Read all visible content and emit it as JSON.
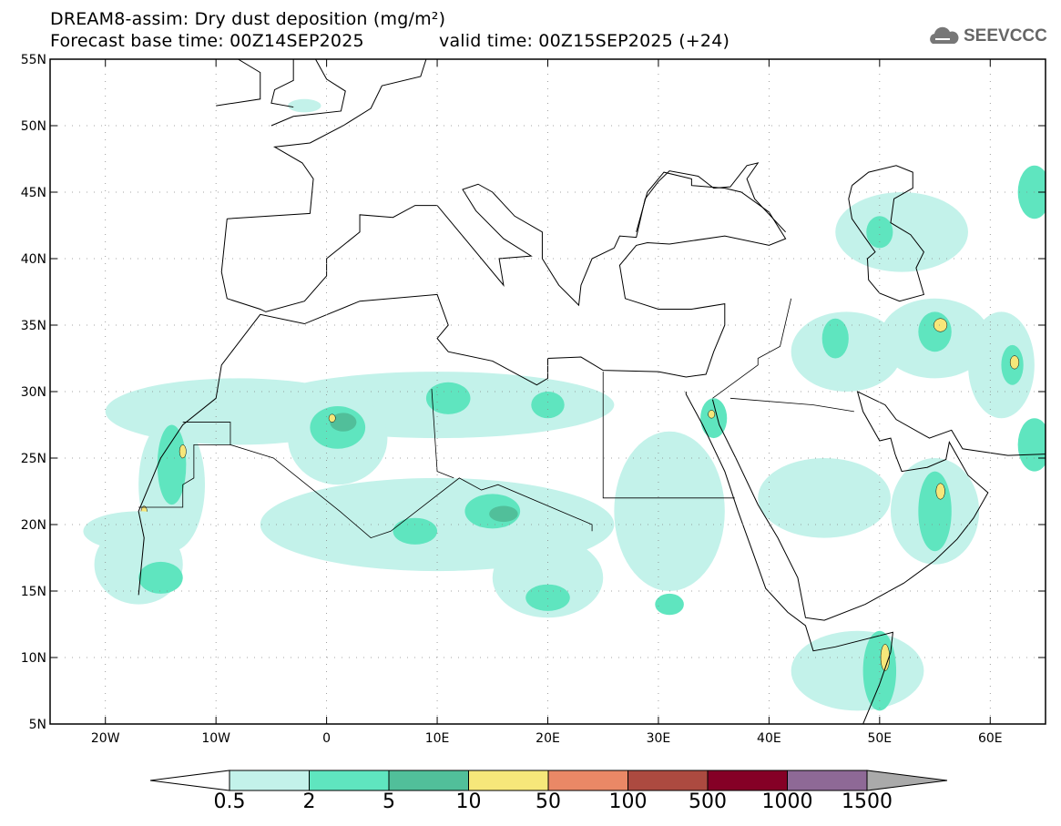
{
  "title": "DREAM8-assim: Dry dust deposition (mg/m²)",
  "subtitle_base": "Forecast base time: 00Z14SEP2025",
  "subtitle_valid": "valid time: 00Z15SEP2025 (+24)",
  "logo": "SEEVCCC",
  "map": {
    "lon_range": [
      -25,
      65
    ],
    "lat_range": [
      5,
      55
    ],
    "lat_ticks": [
      "5N",
      "10N",
      "15N",
      "20N",
      "25N",
      "30N",
      "35N",
      "40N",
      "45N",
      "50N",
      "55N"
    ],
    "lon_ticks": [
      "20W",
      "10W",
      "0",
      "10E",
      "20E",
      "30E",
      "40E",
      "50E",
      "60E"
    ]
  },
  "colorbar": {
    "labels": [
      "0.5",
      "2",
      "5",
      "10",
      "50",
      "100",
      "500",
      "1000",
      "1500"
    ],
    "colors": [
      "#c3f2ea",
      "#5fe5bf",
      "#51bf9a",
      "#f6e77a",
      "#ea8866",
      "#ac4a40",
      "#850026",
      "#8e6996"
    ],
    "under_color": "#ffffff",
    "over_color": "#aaaaaa"
  },
  "dust_regions": [
    {
      "lon": -8,
      "lat": 28.5,
      "rlon": 12,
      "rlat": 2.5,
      "level": 0
    },
    {
      "lon": 10,
      "lat": 29,
      "rlon": 16,
      "rlat": 2.5,
      "level": 0
    },
    {
      "lon": -14,
      "lat": 23,
      "rlon": 3,
      "rlat": 5,
      "level": 0
    },
    {
      "lon": -14,
      "lat": 24.5,
      "rlon": 1.3,
      "rlat": 3,
      "level": 1
    },
    {
      "lon": -13,
      "lat": 25.5,
      "rlon": 0.3,
      "rlat": 0.5,
      "level": 3
    },
    {
      "lon": -16.5,
      "lat": 20.8,
      "rlon": 0.3,
      "rlat": 0.6,
      "level": 3
    },
    {
      "lon": -17,
      "lat": 17,
      "rlon": 4,
      "rlat": 3,
      "level": 0
    },
    {
      "lon": -15,
      "lat": 16,
      "rlon": 2,
      "rlat": 1.2,
      "level": 1
    },
    {
      "lon": -17,
      "lat": 19.5,
      "rlon": 5,
      "rlat": 1.5,
      "level": 0
    },
    {
      "lon": 1,
      "lat": 26.5,
      "rlon": 4.5,
      "rlat": 3.5,
      "level": 0
    },
    {
      "lon": 1,
      "lat": 27.3,
      "rlon": 2.5,
      "rlat": 1.6,
      "level": 1
    },
    {
      "lon": 1.5,
      "lat": 27.7,
      "rlon": 1.2,
      "rlat": 0.7,
      "level": 2
    },
    {
      "lon": 0.5,
      "lat": 28,
      "rlon": 0.3,
      "rlat": 0.3,
      "level": 3
    },
    {
      "lon": 11,
      "lat": 29.5,
      "rlon": 2,
      "rlat": 1.2,
      "level": 1
    },
    {
      "lon": 20,
      "lat": 29,
      "rlon": 1.5,
      "rlat": 1,
      "level": 1
    },
    {
      "lon": 10,
      "lat": 20,
      "rlon": 16,
      "rlat": 3.5,
      "level": 0
    },
    {
      "lon": 15,
      "lat": 21,
      "rlon": 2.5,
      "rlat": 1.3,
      "level": 1
    },
    {
      "lon": 16,
      "lat": 20.8,
      "rlon": 1.3,
      "rlat": 0.6,
      "level": 2
    },
    {
      "lon": 8,
      "lat": 19.5,
      "rlon": 2,
      "rlat": 1,
      "level": 1
    },
    {
      "lon": 20,
      "lat": 16,
      "rlon": 5,
      "rlat": 3,
      "level": 0
    },
    {
      "lon": 20,
      "lat": 14.5,
      "rlon": 2,
      "rlat": 1,
      "level": 1
    },
    {
      "lon": 31,
      "lat": 21,
      "rlon": 5,
      "rlat": 6,
      "level": 0
    },
    {
      "lon": 31,
      "lat": 14,
      "rlon": 1.3,
      "rlat": 0.8,
      "level": 1
    },
    {
      "lon": 35,
      "lat": 28,
      "rlon": 1.2,
      "rlat": 1.5,
      "level": 1
    },
    {
      "lon": 34.8,
      "lat": 28.3,
      "rlon": 0.3,
      "rlat": 0.3,
      "level": 3
    },
    {
      "lon": 45,
      "lat": 22,
      "rlon": 6,
      "rlat": 3,
      "level": 0
    },
    {
      "lon": 47,
      "lat": 33,
      "rlon": 5,
      "rlat": 3,
      "level": 0
    },
    {
      "lon": 46,
      "lat": 34,
      "rlon": 1.2,
      "rlat": 1.5,
      "level": 1
    },
    {
      "lon": 55,
      "lat": 34,
      "rlon": 5,
      "rlat": 3,
      "level": 0
    },
    {
      "lon": 55,
      "lat": 34.5,
      "rlon": 1.5,
      "rlat": 1.5,
      "level": 1
    },
    {
      "lon": 55.5,
      "lat": 35,
      "rlon": 0.6,
      "rlat": 0.5,
      "level": 3
    },
    {
      "lon": 52,
      "lat": 42,
      "rlon": 6,
      "rlat": 3,
      "level": 0
    },
    {
      "lon": 50,
      "lat": 42,
      "rlon": 1.2,
      "rlat": 1.2,
      "level": 1
    },
    {
      "lon": 55,
      "lat": 21,
      "rlon": 4,
      "rlat": 4,
      "level": 0
    },
    {
      "lon": 55,
      "lat": 21,
      "rlon": 1.5,
      "rlat": 3,
      "level": 1
    },
    {
      "lon": 55.5,
      "lat": 22.5,
      "rlon": 0.4,
      "rlat": 0.6,
      "level": 3
    },
    {
      "lon": 48,
      "lat": 9,
      "rlon": 6,
      "rlat": 3,
      "level": 0
    },
    {
      "lon": 50,
      "lat": 9,
      "rlon": 1.5,
      "rlat": 3,
      "level": 1
    },
    {
      "lon": 50.5,
      "lat": 10,
      "rlon": 0.4,
      "rlat": 1,
      "level": 3
    },
    {
      "lon": 61,
      "lat": 32,
      "rlon": 3,
      "rlat": 4,
      "level": 0
    },
    {
      "lon": 62,
      "lat": 32,
      "rlon": 1,
      "rlat": 1.5,
      "level": 1
    },
    {
      "lon": 62.2,
      "lat": 32.2,
      "rlon": 0.4,
      "rlat": 0.5,
      "level": 3
    },
    {
      "lon": 64,
      "lat": 26,
      "rlon": 1.5,
      "rlat": 2,
      "level": 1
    },
    {
      "lon": 64,
      "lat": 45,
      "rlon": 1.5,
      "rlat": 2,
      "level": 1
    },
    {
      "lon": -2,
      "lat": 51.5,
      "rlon": 1.5,
      "rlat": 0.5,
      "level": 0
    }
  ]
}
